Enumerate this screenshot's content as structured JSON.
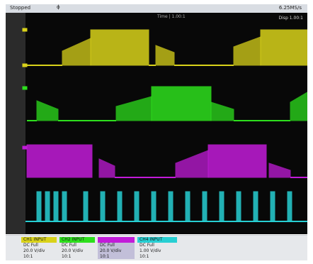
{
  "status": {
    "acq_state": "Stopped",
    "zoom": "ɸ",
    "sample_rate": "6.25MS/s"
  },
  "display": {
    "center_label": "Time | 1.00:1",
    "right_label": "Disp 1.00:1"
  },
  "colors": {
    "ch1": "#d9d21a",
    "ch2": "#2ddf1d",
    "ch3": "#c21bd9",
    "ch4": "#27cfd3",
    "grid_bg": "#080808"
  },
  "channels": [
    {
      "name": "CH1 INPUT",
      "coupling": "DC Full",
      "scale": "20.0 V/div",
      "probe": "10:1"
    },
    {
      "name": "CH2 INPUT",
      "coupling": "DC Full",
      "scale": "20.0 V/div",
      "probe": "10:1"
    },
    {
      "name": "",
      "coupling": "DC Full",
      "scale": "20.0 V/div",
      "probe": "10:1"
    },
    {
      "name": "CH4 INPUT",
      "coupling": "DC Full",
      "scale": "1.00 V/div",
      "probe": "10:1"
    }
  ]
}
